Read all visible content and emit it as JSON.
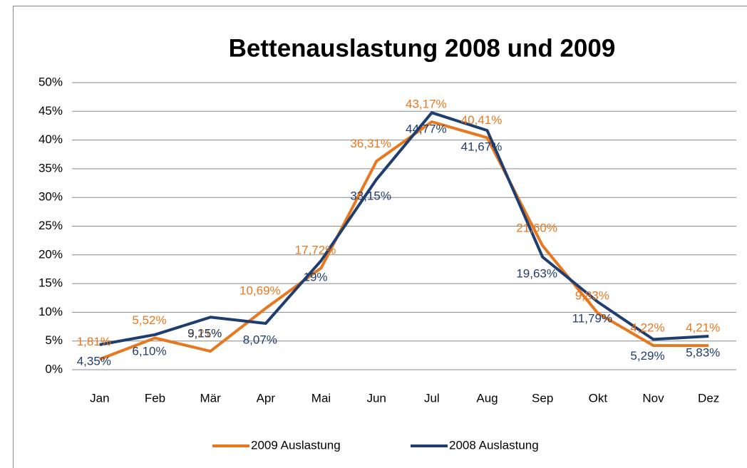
{
  "chart_data": {
    "type": "line",
    "title": "Bettenauslastung 2008 und 2009",
    "categories": [
      "Jan",
      "Feb",
      "Mär",
      "Apr",
      "Mai",
      "Jun",
      "Jul",
      "Aug",
      "Sep",
      "Okt",
      "Nov",
      "Dez"
    ],
    "series": [
      {
        "name": "2009 Auslastung",
        "color": "#e8771e",
        "values": [
          1.81,
          5.52,
          3.21,
          10.69,
          17.72,
          36.31,
          43.17,
          40.41,
          21.6,
          9.83,
          4.22,
          4.21
        ],
        "value_labels": [
          "1,81%",
          "5,52%",
          "3,21%",
          "10,69%",
          "17,72%",
          "36,31%",
          "43,17%",
          "40,41%",
          "21,60%",
          "9,83%",
          "4,22%",
          "4,21%"
        ]
      },
      {
        "name": "2008 Auslastung",
        "color": "#1f3d6e",
        "values": [
          4.35,
          6.1,
          9.15,
          8.07,
          19,
          33.15,
          44.77,
          41.67,
          19.63,
          11.79,
          5.29,
          5.83
        ],
        "value_labels": [
          "4,35%",
          "6,10%",
          "9,15%",
          "8,07%",
          "19%",
          "33,15%",
          "44,77%",
          "41,67%",
          "19,63%",
          "11,79%",
          "5,29%",
          "5,83%"
        ]
      }
    ],
    "ylim": [
      0,
      50
    ],
    "yticks": [
      {
        "value": 0,
        "label": "0%"
      },
      {
        "value": 5,
        "label": "5%"
      },
      {
        "value": 10,
        "label": "10%"
      },
      {
        "value": 15,
        "label": "15%"
      },
      {
        "value": 20,
        "label": "20%"
      },
      {
        "value": 25,
        "label": "25%"
      },
      {
        "value": 30,
        "label": "30%"
      },
      {
        "value": 35,
        "label": "35%"
      },
      {
        "value": 40,
        "label": "40%"
      },
      {
        "value": 45,
        "label": "45%"
      },
      {
        "value": 50,
        "label": "50%"
      }
    ],
    "grid": true,
    "legend": "bottom"
  }
}
